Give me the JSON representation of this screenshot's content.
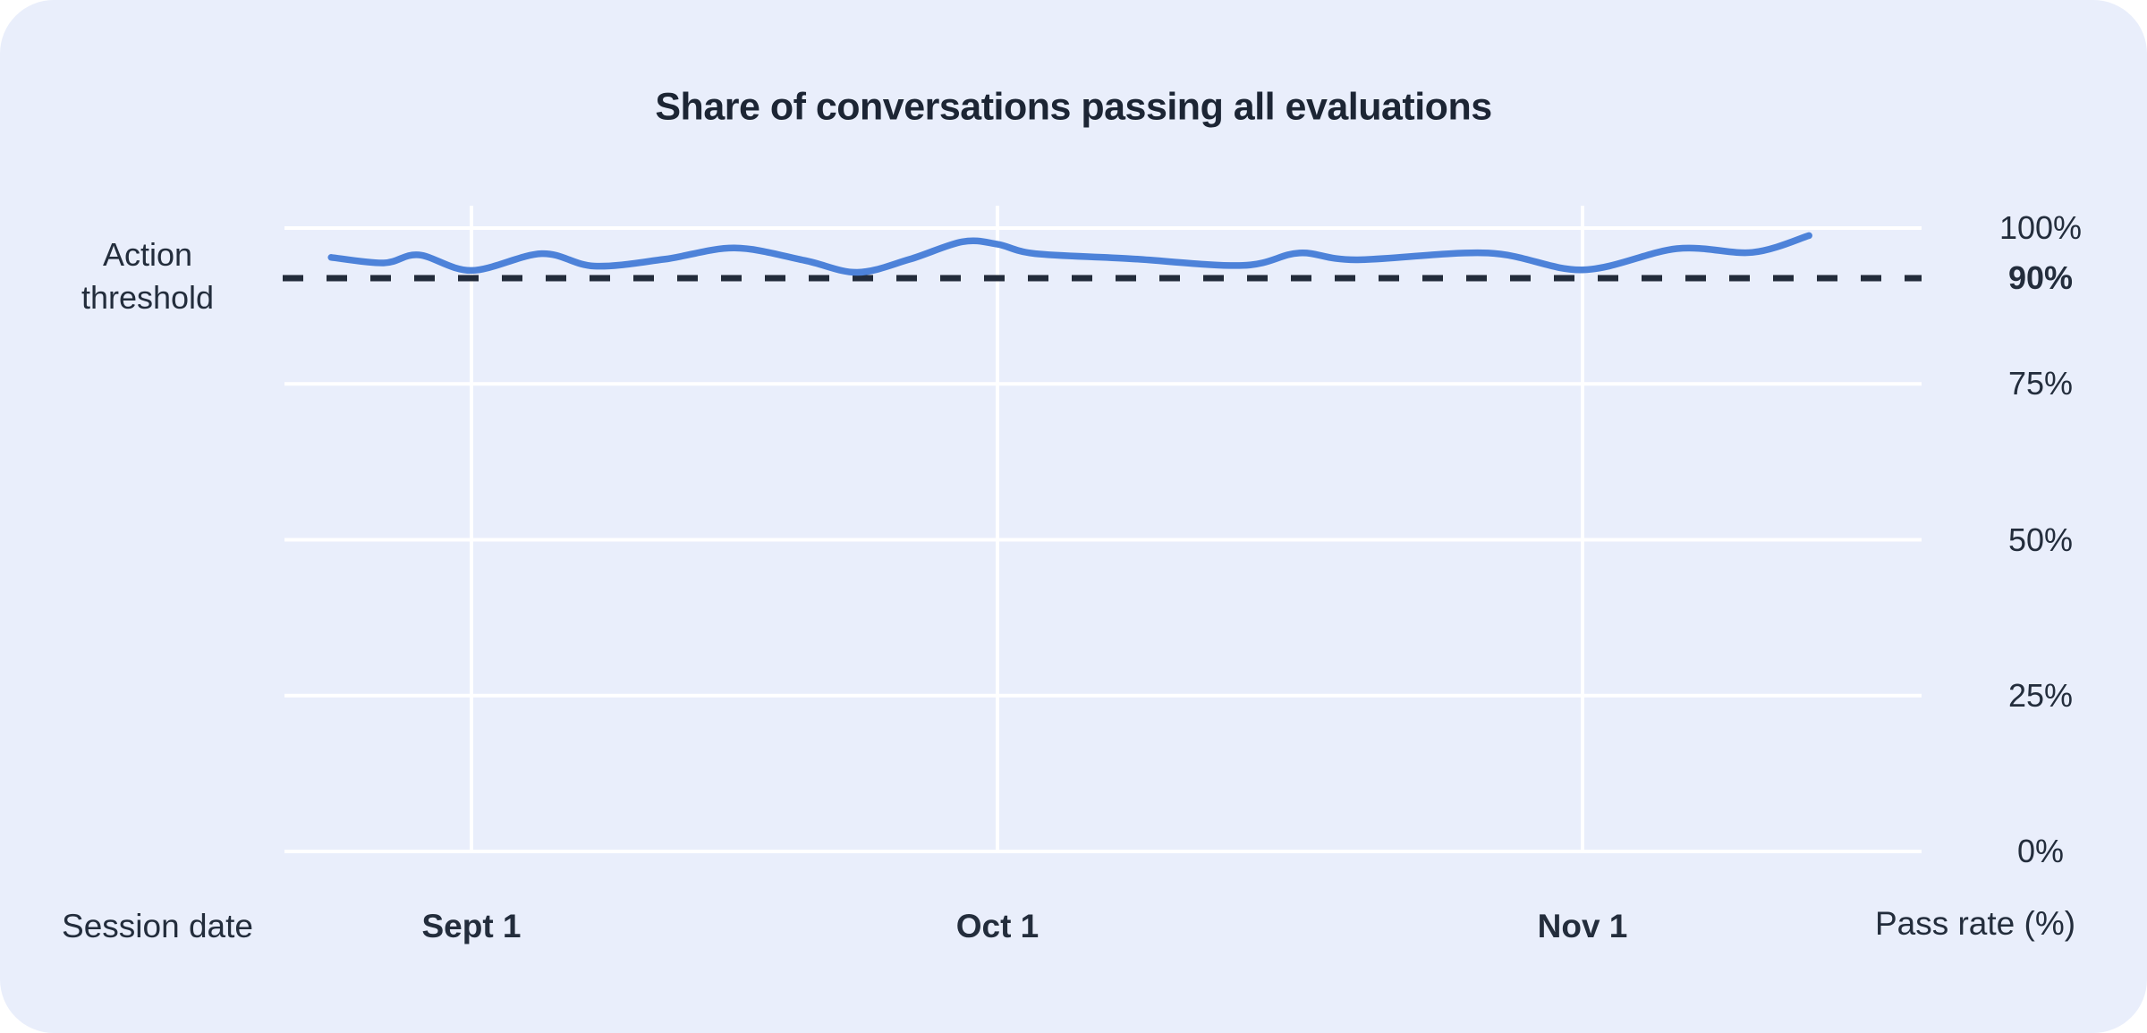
{
  "chart_data": {
    "type": "line",
    "title": "Share of conversations passing all evaluations",
    "xlabel": "Session date",
    "ylabel": "Pass rate (%)",
    "ylim": [
      0,
      100
    ],
    "grid": true,
    "legend": "none",
    "y_ticks": [
      {
        "label": "100%",
        "value": 100,
        "bold": false
      },
      {
        "label": "90%",
        "value": 90,
        "bold": true
      },
      {
        "label": "75%",
        "value": 75,
        "bold": false
      },
      {
        "label": "50%",
        "value": 50,
        "bold": false
      },
      {
        "label": "25%",
        "value": 25,
        "bold": false
      },
      {
        "label": "0%",
        "value": 0,
        "bold": false
      }
    ],
    "x_ticks": [
      {
        "label": "Sept 1",
        "day": 8
      },
      {
        "label": "Oct 1",
        "day": 38
      },
      {
        "label": "Nov 1",
        "day": 69
      }
    ],
    "threshold": {
      "label": "Action threshold",
      "value": 90
    },
    "series": [
      {
        "name": "pass-rate",
        "color": "#4d82d9",
        "points": [
          {
            "date": "Aug 24",
            "day": 0,
            "value": 95.3
          },
          {
            "date": "Aug 27",
            "day": 3,
            "value": 94.4
          },
          {
            "date": "Aug 29",
            "day": 5,
            "value": 95.7
          },
          {
            "date": "Sept 1",
            "day": 8,
            "value": 93.2
          },
          {
            "date": "Sept 5",
            "day": 12,
            "value": 95.9
          },
          {
            "date": "Sept 8",
            "day": 15,
            "value": 93.9
          },
          {
            "date": "Sept 12",
            "day": 19,
            "value": 95.0
          },
          {
            "date": "Sept 16",
            "day": 23,
            "value": 96.8
          },
          {
            "date": "Sept 20",
            "day": 27,
            "value": 94.8
          },
          {
            "date": "Sept 23",
            "day": 30,
            "value": 92.9
          },
          {
            "date": "Sept 26",
            "day": 33,
            "value": 95.0
          },
          {
            "date": "Sept 29",
            "day": 36,
            "value": 97.8
          },
          {
            "date": "Oct 1",
            "day": 38,
            "value": 97.4
          },
          {
            "date": "Oct 3",
            "day": 40,
            "value": 95.9
          },
          {
            "date": "Oct 8",
            "day": 45,
            "value": 95.1
          },
          {
            "date": "Oct 14",
            "day": 51,
            "value": 94.0
          },
          {
            "date": "Oct 17",
            "day": 54,
            "value": 96.0
          },
          {
            "date": "Oct 20",
            "day": 57,
            "value": 94.9
          },
          {
            "date": "Oct 27",
            "day": 64,
            "value": 96.0
          },
          {
            "date": "Nov 1",
            "day": 69,
            "value": 93.3
          },
          {
            "date": "Nov 6",
            "day": 74,
            "value": 96.7
          },
          {
            "date": "Nov 10",
            "day": 78,
            "value": 96.1
          },
          {
            "date": "Nov 13",
            "day": 81,
            "value": 98.8
          }
        ]
      }
    ]
  },
  "colors": {
    "card_bg": "#e9eefb",
    "page_bg": "#ffffff",
    "grid": "#ffffff",
    "line": "#4d82d9",
    "threshold_line": "#222b3a",
    "text": "#232d3c"
  }
}
